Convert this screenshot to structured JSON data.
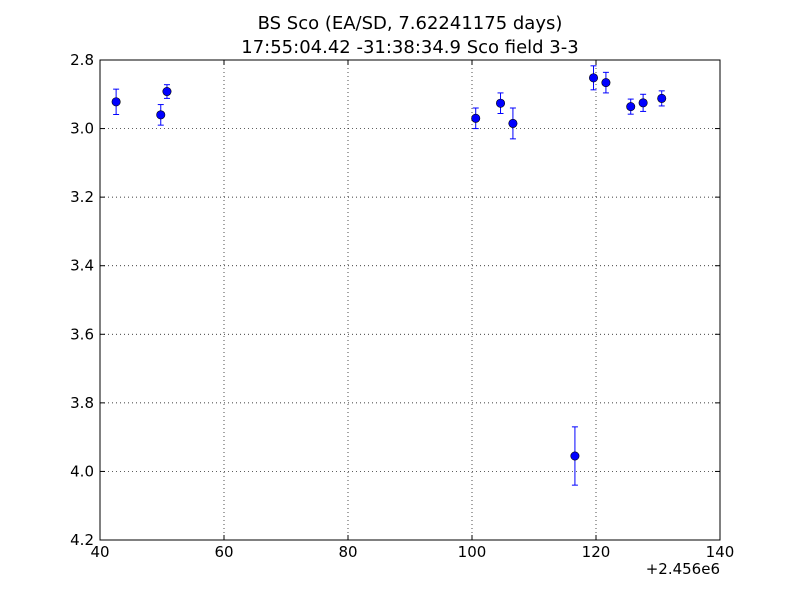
{
  "chart_data": {
    "type": "scatter",
    "title_lines": [
      "BS Sco  (EA/SD, 7.62241175 days)",
      "17:55:04.42 -31:38:34.9 Sco field 3-3"
    ],
    "xlabel": "",
    "ylabel": "",
    "x_offset_label": "+2.456e6",
    "xlim": [
      40,
      140
    ],
    "ylim": [
      4.2,
      2.8
    ],
    "y_inverted": true,
    "x_ticks": [
      40,
      60,
      80,
      100,
      120,
      140
    ],
    "x_tick_labels": [
      "40",
      "60",
      "80",
      "100",
      "120",
      "140"
    ],
    "y_ticks": [
      2.8,
      3.0,
      3.2,
      3.4,
      3.6,
      3.8,
      4.0,
      4.2
    ],
    "y_tick_labels": [
      "2.8",
      "3.0",
      "3.2",
      "3.4",
      "3.6",
      "3.8",
      "4.0",
      "4.2"
    ],
    "grid": true,
    "marker_color": "#0000ff",
    "series": [
      {
        "points": [
          {
            "x": 42.6,
            "y": 2.922,
            "err": 0.037
          },
          {
            "x": 49.8,
            "y": 2.96,
            "err": 0.03
          },
          {
            "x": 50.8,
            "y": 2.892,
            "err": 0.02
          },
          {
            "x": 100.6,
            "y": 2.97,
            "err": 0.03
          },
          {
            "x": 104.6,
            "y": 2.926,
            "err": 0.03
          },
          {
            "x": 106.6,
            "y": 2.985,
            "err": 0.045
          },
          {
            "x": 116.6,
            "y": 3.955,
            "err": 0.085
          },
          {
            "x": 119.6,
            "y": 2.852,
            "err": 0.035
          },
          {
            "x": 121.6,
            "y": 2.866,
            "err": 0.03
          },
          {
            "x": 125.6,
            "y": 2.936,
            "err": 0.022
          },
          {
            "x": 127.6,
            "y": 2.925,
            "err": 0.025
          },
          {
            "x": 130.6,
            "y": 2.912,
            "err": 0.022
          }
        ]
      }
    ]
  }
}
